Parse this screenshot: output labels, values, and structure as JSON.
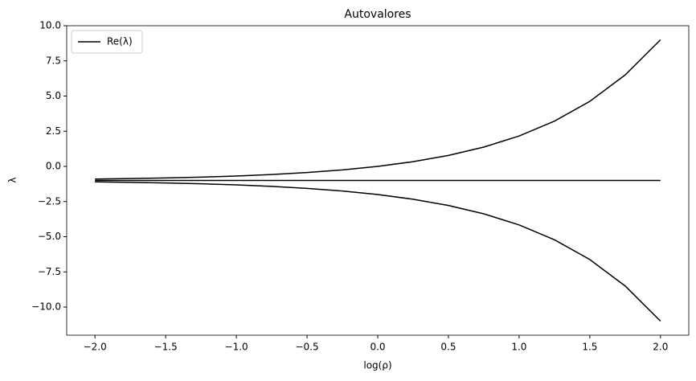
{
  "chart_data": {
    "type": "line",
    "title": "Autovalores",
    "xlabel": "log(ρ)",
    "ylabel": "λ",
    "x": [
      -2,
      -1.75,
      -1.5,
      -1.25,
      -1,
      -0.75,
      -0.5,
      -0.25,
      0,
      0.25,
      0.5,
      0.75,
      1,
      1.25,
      1.5,
      1.75,
      2
    ],
    "series": [
      {
        "name": "Re(λ)",
        "color": "#000000",
        "values": [
          -0.9,
          -0.867,
          -0.822,
          -0.763,
          -0.684,
          -0.578,
          -0.438,
          -0.25,
          0,
          0.334,
          0.778,
          1.371,
          2.162,
          3.217,
          4.623,
          6.499,
          9
        ]
      },
      {
        "color": "#000000",
        "values": [
          -1,
          -1,
          -1,
          -1,
          -1,
          -1,
          -1,
          -1,
          -1,
          -1,
          -1,
          -1,
          -1,
          -1,
          -1,
          -1,
          -1
        ]
      },
      {
        "color": "#000000",
        "values": [
          -1.1,
          -1.133,
          -1.178,
          -1.237,
          -1.316,
          -1.422,
          -1.562,
          -1.75,
          -2,
          -2.334,
          -2.778,
          -3.371,
          -4.162,
          -5.217,
          -6.623,
          -8.499,
          -11
        ]
      }
    ],
    "xlim": [
      -2.2,
      2.2
    ],
    "xticks": [
      {
        "value": -2,
        "label": "−2.0"
      },
      {
        "value": -1.5,
        "label": "−1.5"
      },
      {
        "value": -1,
        "label": "−1.0"
      },
      {
        "value": -0.5,
        "label": "−0.5"
      },
      {
        "value": 0,
        "label": "0.0"
      },
      {
        "value": 0.5,
        "label": "0.5"
      },
      {
        "value": 1,
        "label": "1.0"
      },
      {
        "value": 1.5,
        "label": "1.5"
      },
      {
        "value": 2,
        "label": "2.0"
      }
    ],
    "ylim": [
      -12,
      10
    ],
    "yticks": [
      {
        "value": -10,
        "label": "−10.0"
      },
      {
        "value": -7.5,
        "label": "−7.5"
      },
      {
        "value": -5,
        "label": "−5.0"
      },
      {
        "value": -2.5,
        "label": "−2.5"
      },
      {
        "value": 0,
        "label": "0.0"
      },
      {
        "value": 2.5,
        "label": "2.5"
      },
      {
        "value": 5,
        "label": "5.0"
      },
      {
        "value": 7.5,
        "label": "7.5"
      },
      {
        "value": 10,
        "label": "10.0"
      }
    ],
    "legend": "upper left"
  }
}
